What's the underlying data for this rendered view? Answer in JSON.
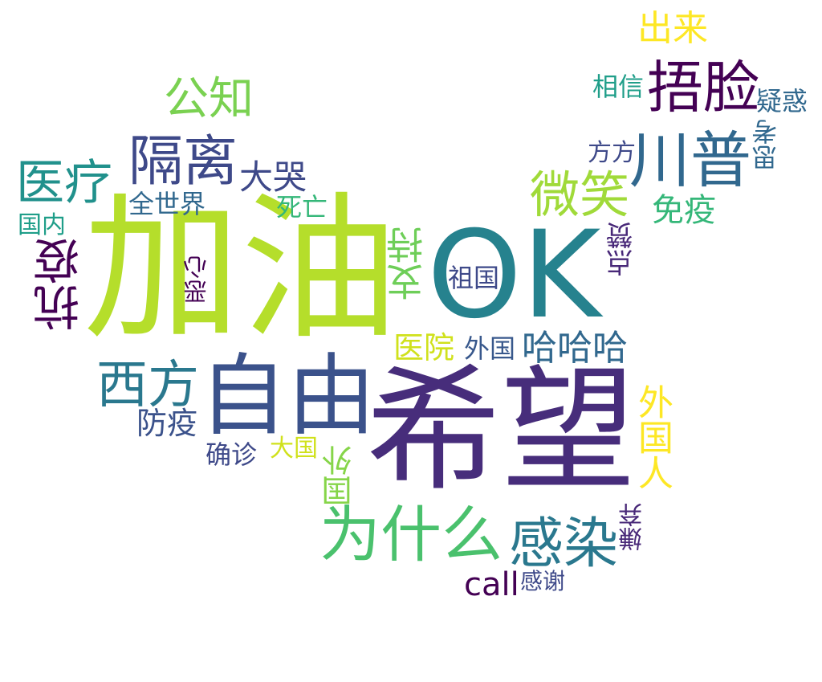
{
  "words": [
    {
      "id": "jiayou",
      "text": "加油",
      "color": "#b5de2b"
    },
    {
      "id": "xiwang",
      "text": "希望",
      "color": "#472d7b"
    },
    {
      "id": "ok",
      "text": "OK",
      "color": "#26828e"
    },
    {
      "id": "ziyou",
      "text": "自由",
      "color": "#3b528b"
    },
    {
      "id": "weishenme",
      "text": "为什么",
      "color": "#4ac16d"
    },
    {
      "id": "wulian",
      "text": "捂脸",
      "color": "#440154"
    },
    {
      "id": "chuanpu",
      "text": "川普",
      "color": "#31688e"
    },
    {
      "id": "geli",
      "text": "隔离",
      "color": "#3e4989"
    },
    {
      "id": "ganran",
      "text": "感染",
      "color": "#2a788e"
    },
    {
      "id": "xifang",
      "text": "西方",
      "color": "#2a788e"
    },
    {
      "id": "yiliao",
      "text": "医疗",
      "color": "#21918c"
    },
    {
      "id": "weixiao",
      "text": "微笑",
      "color": "#a0da39"
    },
    {
      "id": "gongzhi",
      "text": "公知",
      "color": "#7ad151"
    },
    {
      "id": "kangyi",
      "text": "抗疫",
      "color": "#440154"
    },
    {
      "id": "zhichi",
      "text": "支持",
      "color": "#6ece58"
    },
    {
      "id": "waiguoren",
      "text": "外国人",
      "color": "#fde725"
    },
    {
      "id": "hahaha",
      "text": "哈哈哈",
      "color": "#31688e"
    },
    {
      "id": "dakun",
      "text": "大哭",
      "color": "#3e4989"
    },
    {
      "id": "chulai",
      "text": "出来",
      "color": "#fde725"
    },
    {
      "id": "mianyi",
      "text": "免疫",
      "color": "#35b779"
    },
    {
      "id": "yiyuan",
      "text": "医院",
      "color": "#d0e11c"
    },
    {
      "id": "fangyi",
      "text": "防疫",
      "color": "#3b528b"
    },
    {
      "id": "call",
      "text": "call",
      "color": "#440154"
    },
    {
      "id": "guowai",
      "text": "国外",
      "color": "#86d549"
    },
    {
      "id": "waiguo",
      "text": "外国",
      "color": "#38588c"
    },
    {
      "id": "dianzan",
      "text": "点赞",
      "color": "#482878"
    },
    {
      "id": "sikao",
      "text": "思考",
      "color": "#31688e"
    },
    {
      "id": "yihuo",
      "text": "疑惑",
      "color": "#31688e"
    },
    {
      "id": "xiangxin",
      "text": "相信",
      "color": "#1f9e89"
    },
    {
      "id": "fangfang",
      "text": "方方",
      "color": "#3e4989"
    },
    {
      "id": "quanshijie",
      "text": "全世界",
      "color": "#31688e"
    },
    {
      "id": "siwang",
      "text": "死亡",
      "color": "#35b779"
    },
    {
      "id": "guonei",
      "text": "国内",
      "color": "#1f9e89"
    },
    {
      "id": "exin",
      "text": "恶心",
      "color": "#440154"
    },
    {
      "id": "zuguo",
      "text": "祖国",
      "color": "#3e4989"
    },
    {
      "id": "quezhen",
      "text": "确诊",
      "color": "#3e4989"
    },
    {
      "id": "daguo",
      "text": "大国",
      "color": "#d0e11c"
    },
    {
      "id": "xianqi",
      "text": "嫌弃",
      "color": "#482878"
    },
    {
      "id": "ganxie",
      "text": "感谢",
      "color": "#3e4989"
    }
  ]
}
